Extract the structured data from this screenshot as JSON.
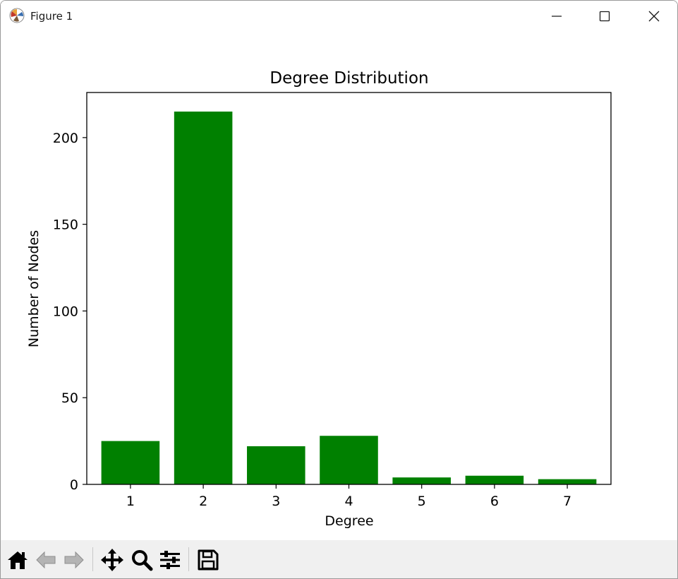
{
  "window": {
    "title": "Figure 1"
  },
  "toolbar": {
    "tools": [
      "home-icon",
      "back-icon",
      "forward-icon",
      "pan-icon",
      "zoom-icon",
      "configure-subplots-icon",
      "save-icon"
    ]
  },
  "colors": {
    "bar": "#008000",
    "toolbar_bg": "#f0f0f0"
  },
  "chart_data": {
    "type": "bar",
    "title": "Degree Distribution",
    "xlabel": "Degree",
    "ylabel": "Number of Nodes",
    "categories": [
      "1",
      "2",
      "3",
      "4",
      "5",
      "6",
      "7"
    ],
    "values": [
      25,
      215,
      22,
      28,
      4,
      5,
      3
    ],
    "ylim": [
      0,
      226
    ],
    "yticks": [
      0,
      50,
      100,
      150,
      200
    ],
    "grid": false,
    "legend": "none"
  }
}
